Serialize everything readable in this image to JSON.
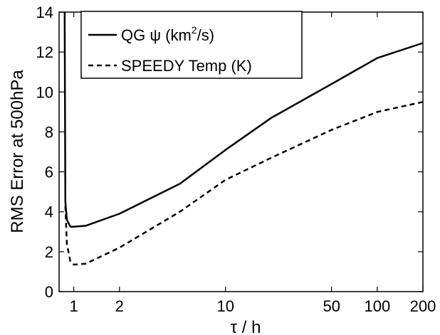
{
  "chart_data": {
    "type": "line",
    "xscale": "log",
    "xlabel": "τ / h",
    "ylabel": "RMS Error at 500hPa",
    "xlim": [
      0.8,
      200
    ],
    "ylim": [
      0,
      14
    ],
    "xticks": [
      1,
      2,
      10,
      50,
      100,
      200
    ],
    "xtick_labels": [
      "1",
      "2",
      "10",
      "50",
      "100",
      "200"
    ],
    "yticks": [
      0,
      2,
      4,
      6,
      8,
      10,
      12,
      14
    ],
    "ytick_labels": [
      "0",
      "2",
      "4",
      "6",
      "8",
      "10",
      "12",
      "14"
    ],
    "grid": false,
    "legend_position": "top-left",
    "series": [
      {
        "name": "QG ψ (km²/s)",
        "legend_main": "QG ψ (km",
        "legend_sup": "2",
        "legend_tail": "/s)",
        "style": "solid",
        "x": [
          0.87,
          0.88,
          0.9,
          0.95,
          1.0,
          1.2,
          2,
          5,
          10,
          20,
          50,
          100,
          200
        ],
        "y": [
          14,
          4.5,
          3.6,
          3.25,
          3.25,
          3.3,
          3.9,
          5.4,
          7.1,
          8.7,
          10.4,
          11.7,
          12.45
        ]
      },
      {
        "name": "SPEEDY Temp (K)",
        "style": "dashed",
        "x": [
          0.88,
          0.9,
          0.95,
          1.0,
          1.2,
          2,
          5,
          10,
          20,
          50,
          100,
          200
        ],
        "y": [
          4.3,
          2.4,
          1.5,
          1.35,
          1.4,
          2.2,
          4.0,
          5.6,
          6.7,
          8.1,
          9.0,
          9.5
        ]
      }
    ]
  }
}
